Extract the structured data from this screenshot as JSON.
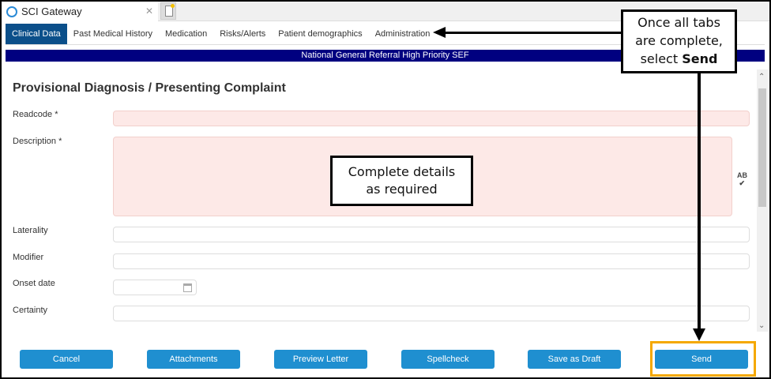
{
  "window": {
    "tab_title": "SCI Gateway"
  },
  "tabs": [
    {
      "label": "Clinical Data",
      "active": true
    },
    {
      "label": "Past Medical History"
    },
    {
      "label": "Medication"
    },
    {
      "label": "Risks/Alerts"
    },
    {
      "label": "Patient demographics"
    },
    {
      "label": "Administration"
    }
  ],
  "banner": "National General Referral High Priority SEF",
  "form": {
    "heading": "Provisional Diagnosis / Presenting Complaint",
    "fields": {
      "readcode": "Readcode *",
      "description": "Description *",
      "laterality": "Laterality",
      "modifier": "Modifier",
      "onset": "Onset date",
      "certainty": "Certainty"
    },
    "spellcheck_icon": "AB"
  },
  "buttons": {
    "cancel": "Cancel",
    "attachments": "Attachments",
    "preview": "Preview Letter",
    "spellcheck": "Spellcheck",
    "draft": "Save as Draft",
    "send": "Send"
  },
  "callouts": {
    "tabs_l1": "Once all tabs",
    "tabs_l2": "are complete,",
    "tabs_l3": "select ",
    "tabs_bold": "Send",
    "details_l1": "Complete details",
    "details_l2": "as required"
  },
  "colors": {
    "primary_button": "#1f8fd0",
    "banner": "#000080",
    "active_tab": "#0b4f8a",
    "required_field": "#fde9e7",
    "highlight": "#f5a800"
  }
}
